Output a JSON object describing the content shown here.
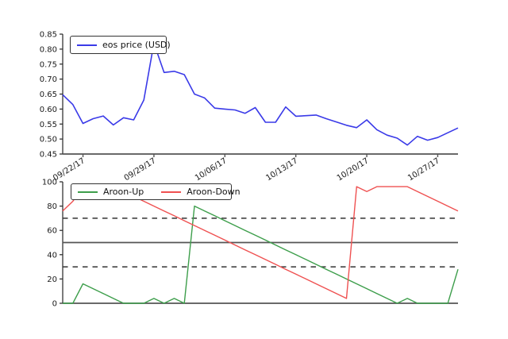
{
  "figure": {
    "background": "#ffffff",
    "axis_color": "#262626",
    "xaxis_color": "#555555",
    "tick_label_color": "#1a1a1a"
  },
  "chart_data": [
    {
      "type": "line",
      "title": "",
      "xlabel": "",
      "ylabel": "",
      "grid": false,
      "legend_position": "upper left",
      "ylim": [
        0.45,
        0.85
      ],
      "ytick_values": [
        0.45,
        0.5,
        0.55,
        0.6,
        0.65,
        0.7,
        0.75,
        0.8,
        0.85
      ],
      "ytick_labels": [
        "0.45",
        "0.50",
        "0.55",
        "0.60",
        "0.65",
        "0.70",
        "0.75",
        "0.80",
        "0.85"
      ],
      "n_points": 40,
      "xtick_indices": [
        2,
        9,
        16,
        23,
        30,
        37
      ],
      "xtick_labels": [
        "09/22/17",
        "09/29/17",
        "10/06/17",
        "10/13/17",
        "10/20/17",
        "10/27/17"
      ],
      "series": [
        {
          "name": "eos price (USD)",
          "color": "#3a3ae8",
          "values": [
            0.648,
            0.615,
            0.552,
            0.568,
            0.577,
            0.547,
            0.571,
            0.564,
            0.63,
            0.82,
            0.722,
            0.726,
            0.715,
            0.65,
            0.637,
            0.603,
            0.6,
            0.597,
            0.586,
            0.605,
            0.556,
            0.556,
            0.607,
            0.576,
            0.578,
            0.58,
            0.568,
            0.557,
            0.546,
            0.538,
            0.564,
            0.531,
            0.513,
            0.503,
            0.48,
            0.509,
            0.496,
            0.505,
            0.521,
            0.537
          ]
        }
      ]
    },
    {
      "type": "line",
      "title": "",
      "xlabel": "",
      "ylabel": "",
      "grid": false,
      "legend_position": "upper left",
      "ylim": [
        0,
        100
      ],
      "ytick_values": [
        0,
        20,
        40,
        60,
        80,
        100
      ],
      "ytick_labels": [
        "0",
        "20",
        "40",
        "60",
        "80",
        "100"
      ],
      "n_points": 40,
      "xtick_indices": [],
      "xtick_labels": [],
      "hlines": [
        {
          "y": 70,
          "style": "dashed",
          "color": "#333333"
        },
        {
          "y": 50,
          "style": "solid",
          "color": "#555555"
        },
        {
          "y": 30,
          "style": "dashed",
          "color": "#333333"
        }
      ],
      "series": [
        {
          "name": "Aroon-Up",
          "color": "#3d9e4b",
          "values": [
            0,
            0,
            16,
            12,
            8,
            4,
            0,
            0,
            0,
            4,
            0,
            4,
            0,
            80,
            76,
            72,
            68,
            64,
            60,
            56,
            52,
            48,
            44,
            40,
            36,
            32,
            28,
            24,
            20,
            16,
            12,
            8,
            4,
            0,
            4,
            0,
            0,
            0,
            0,
            28
          ]
        },
        {
          "name": "Aroon-Down",
          "color": "#ef5151",
          "values": [
            76,
            84,
            96,
            96,
            96,
            96,
            92,
            88,
            84,
            80,
            76,
            72,
            68,
            64,
            60,
            56,
            52,
            48,
            44,
            40,
            36,
            32,
            28,
            24,
            20,
            16,
            12,
            8,
            4,
            96,
            92,
            96,
            96,
            96,
            96,
            92,
            88,
            84,
            80,
            76
          ]
        }
      ]
    }
  ]
}
